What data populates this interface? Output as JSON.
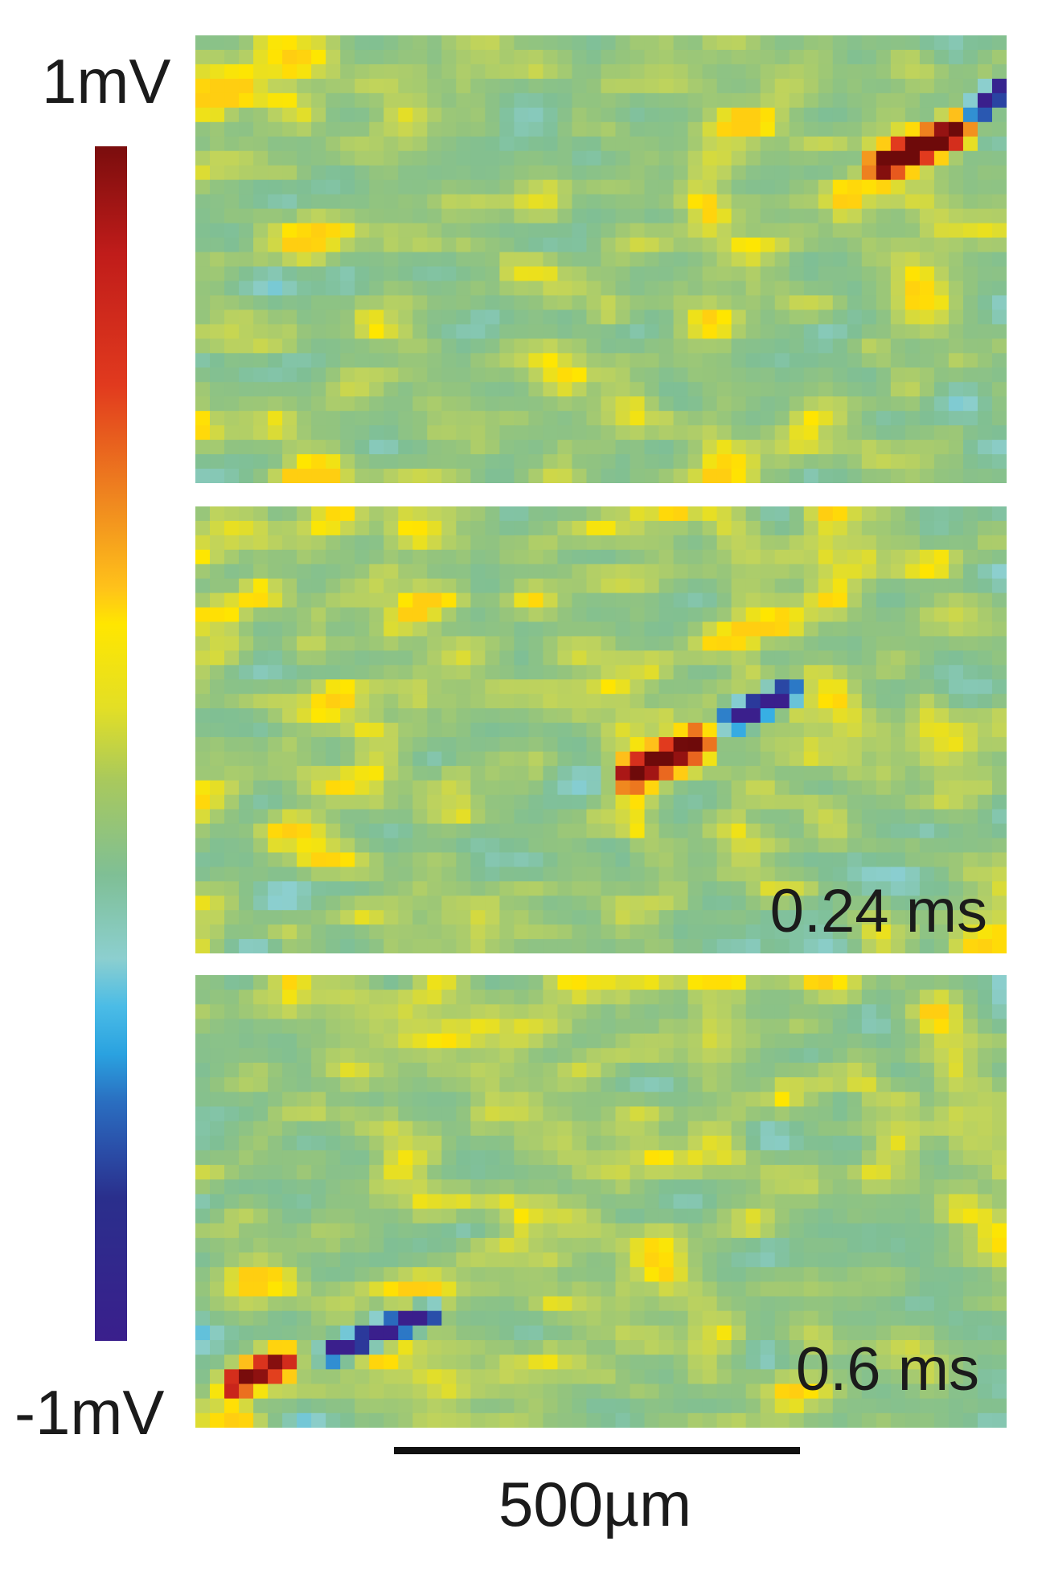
{
  "colorbar": {
    "max_label": "1mV",
    "min_label": "-1mV",
    "stops": [
      "#7a0d0d",
      "#d42a1e",
      "#f08a1f",
      "#ffe600",
      "#b6cf54",
      "#7fbf95",
      "#8ccfcf",
      "#38b3e6",
      "#2a4ea8",
      "#3a1f8c"
    ]
  },
  "panels": [
    {
      "name": "panel-1",
      "time_label": "",
      "features": [
        {
          "shape": "streak",
          "sign": "positive",
          "peak": 1.0,
          "desc": "red hotspot upper right"
        },
        {
          "shape": "streak",
          "sign": "negative",
          "peak": -0.9,
          "desc": "blue spot top right edge"
        }
      ]
    },
    {
      "name": "panel-2",
      "time_label": "0.24 ms",
      "features": [
        {
          "shape": "streak",
          "sign": "positive",
          "peak": 0.9,
          "desc": "red streak center"
        },
        {
          "shape": "streak",
          "sign": "negative",
          "peak": -1.0,
          "desc": "blue streak center right"
        }
      ]
    },
    {
      "name": "panel-3",
      "time_label": "0.6 ms",
      "features": [
        {
          "shape": "streak",
          "sign": "positive",
          "peak": 0.8,
          "desc": "red spot bottom left"
        },
        {
          "shape": "streak",
          "sign": "negative",
          "peak": -1.0,
          "desc": "blue streak bottom left"
        }
      ]
    }
  ],
  "scale_bar": {
    "label": "500µm"
  },
  "colors": {
    "background": "#ffffff",
    "text": "#1b1b1b",
    "base_field": "#7fbf95"
  }
}
